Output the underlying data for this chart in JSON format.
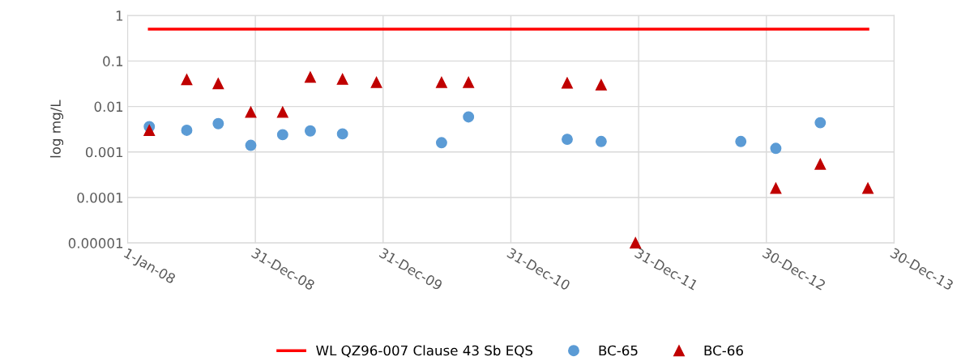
{
  "chart_data": {
    "type": "scatter",
    "ylabel": "log mg/L",
    "log": "y",
    "grid": true,
    "legend": "bottom",
    "xlim": [
      "2008-01-01",
      "2013-12-30"
    ],
    "xticks": [
      {
        "value": "2008-01-01",
        "label": "1-Jan-08"
      },
      {
        "value": "2008-12-31",
        "label": "31-Dec-08"
      },
      {
        "value": "2009-12-31",
        "label": "31-Dec-09"
      },
      {
        "value": "2010-12-31",
        "label": "31-Dec-10"
      },
      {
        "value": "2011-12-31",
        "label": "31-Dec-11"
      },
      {
        "value": "2012-12-30",
        "label": "30-Dec-12"
      },
      {
        "value": "2013-12-30",
        "label": "30-Dec-13"
      }
    ],
    "ylim": [
      1e-05,
      1
    ],
    "yticks": [
      1,
      0.1,
      0.01,
      0.001,
      0.0001,
      {
        "value": 1e-05,
        "label": "0.00001"
      }
    ],
    "series": [
      {
        "name": "WL QZ96-007 Clause 43 Sb EQS",
        "type": "line",
        "marker": "none",
        "line_style": "solid",
        "color": "#ff0000",
        "x": [
          "2008-03-03",
          "2013-10-16"
        ],
        "values": [
          0.5,
          0.5
        ]
      },
      {
        "name": "BC-65",
        "marker": "circle",
        "color": "#5b9bd5",
        "x": [
          "2008-03-03",
          "2008-06-18",
          "2008-09-16",
          "2008-12-18",
          "2009-03-19",
          "2009-06-06",
          "2009-09-06",
          "2010-06-16",
          "2010-09-01",
          "2011-06-10",
          "2011-09-15",
          "2012-10-18",
          "2013-01-26",
          "2013-06-02"
        ],
        "values": [
          0.0036,
          0.003,
          0.0042,
          0.0014,
          0.0024,
          0.0029,
          0.0025,
          0.0016,
          0.0059,
          0.0019,
          0.0017,
          0.0017,
          0.0012,
          0.0044
        ]
      },
      {
        "name": "BC-66",
        "marker": "triangle",
        "color": "#c00000",
        "x": [
          "2008-03-03",
          "2008-06-18",
          "2008-09-16",
          "2008-12-18",
          "2009-03-19",
          "2009-06-06",
          "2009-09-06",
          "2009-12-12",
          "2010-06-16",
          "2010-09-01",
          "2011-06-10",
          "2011-09-15",
          "2011-12-22",
          "2013-01-26",
          "2013-06-02",
          "2013-10-16"
        ],
        "values": [
          0.003,
          0.039,
          0.032,
          0.0075,
          0.0075,
          0.044,
          0.04,
          0.034,
          0.034,
          0.034,
          0.033,
          0.03,
          1e-05,
          0.00016,
          0.00054,
          0.00016
        ]
      }
    ]
  }
}
